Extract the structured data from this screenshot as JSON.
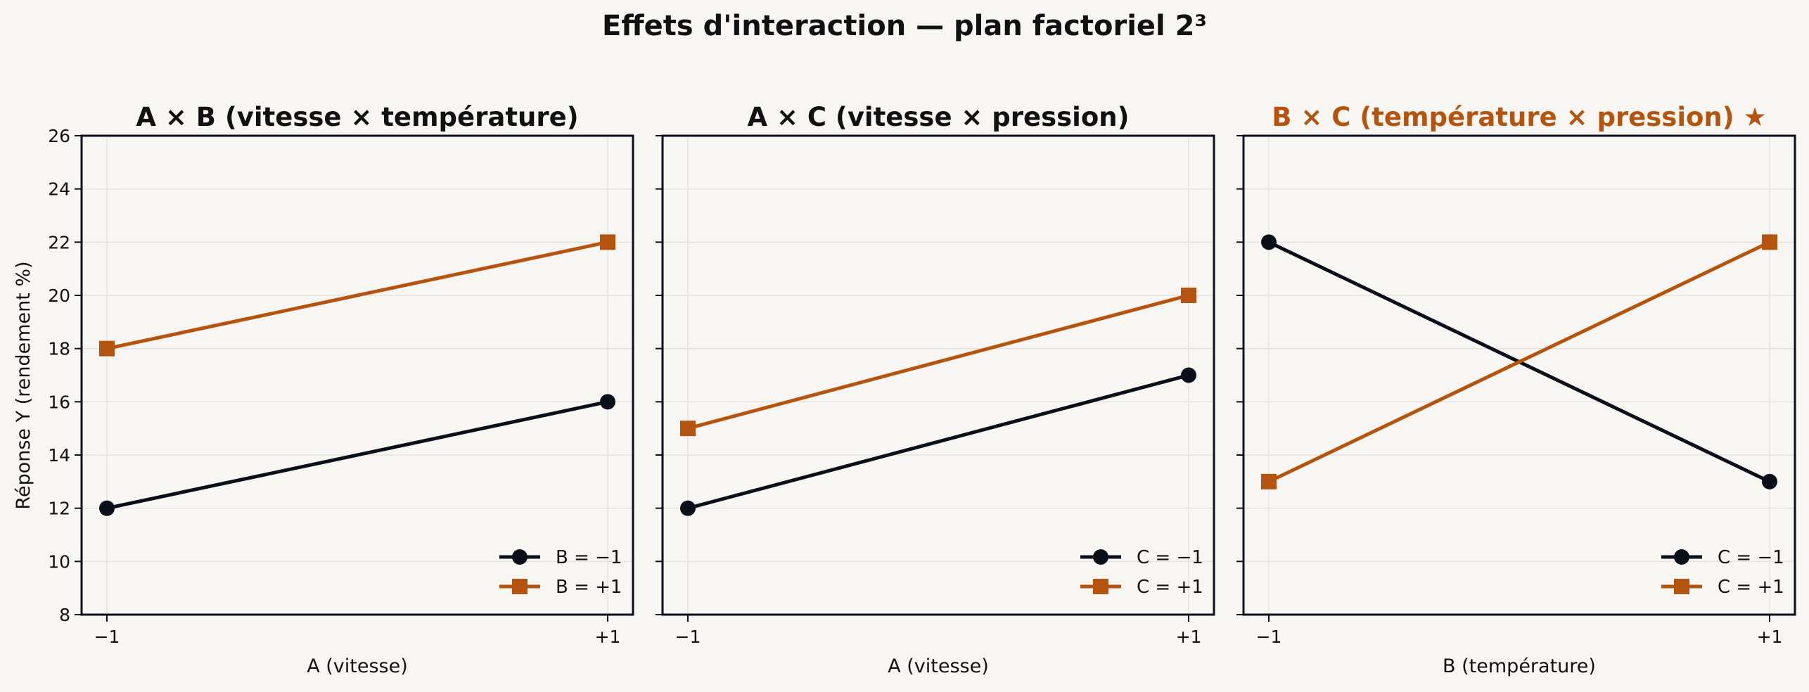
{
  "figure": {
    "title": "Effets d'interaction — plan factoriel 2³",
    "ylabel": "Réponse Y (rendement %)"
  },
  "colors": {
    "background": "#f8f6f2",
    "dark": "#0b0f19",
    "accent": "#b5540f",
    "grid": "#e6e3de",
    "text": "#111111"
  },
  "chart_data": [
    {
      "type": "line",
      "title": "A × B (vitesse × température)",
      "title_highlight": false,
      "xlabel": "A (vitesse)",
      "ylabel": "Réponse Y (rendement %)",
      "categories": [
        "−1",
        "+1"
      ],
      "ylim": [
        8,
        26
      ],
      "yticks": [
        8,
        10,
        12,
        14,
        16,
        18,
        20,
        22,
        24,
        26
      ],
      "grid": true,
      "legend_position": "bottom-right",
      "series": [
        {
          "name": "B = −1",
          "values": [
            12,
            16
          ],
          "color": "#0b0f19",
          "marker": "circle"
        },
        {
          "name": "B = +1",
          "values": [
            18,
            22
          ],
          "color": "#b5540f",
          "marker": "square"
        }
      ]
    },
    {
      "type": "line",
      "title": "A × C (vitesse × pression)",
      "title_highlight": false,
      "xlabel": "A (vitesse)",
      "categories": [
        "−1",
        "+1"
      ],
      "ylim": [
        8,
        26
      ],
      "grid": true,
      "legend_position": "bottom-right",
      "series": [
        {
          "name": "C = −1",
          "values": [
            12,
            17
          ],
          "color": "#0b0f19",
          "marker": "circle"
        },
        {
          "name": "C = +1",
          "values": [
            15,
            20
          ],
          "color": "#b5540f",
          "marker": "square"
        }
      ]
    },
    {
      "type": "line",
      "title": "B × C (température × pression)  ★",
      "title_highlight": true,
      "xlabel": "B (température)",
      "categories": [
        "−1",
        "+1"
      ],
      "ylim": [
        8,
        26
      ],
      "grid": true,
      "legend_position": "bottom-right",
      "series": [
        {
          "name": "C = −1",
          "values": [
            22,
            13
          ],
          "color": "#0b0f19",
          "marker": "circle"
        },
        {
          "name": "C = +1",
          "values": [
            13,
            22
          ],
          "color": "#b5540f",
          "marker": "square"
        }
      ]
    }
  ]
}
